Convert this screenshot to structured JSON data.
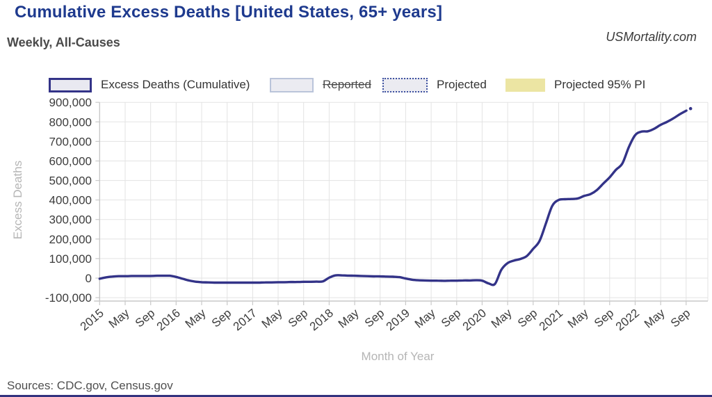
{
  "header": {
    "title": "Cumulative Excess Deaths [United States, 65+ years]",
    "subtitle": "Weekly, All-Causes",
    "watermark": "USMortality.com"
  },
  "legend": {
    "items": [
      {
        "label": "Excess Deaths (Cumulative)",
        "swatch_fill": "#e9e9f1",
        "swatch_border": "#333388",
        "border_style": "solid",
        "state": "active"
      },
      {
        "label": "Reported",
        "swatch_fill": "#ebebf1",
        "swatch_border": "#bac4da",
        "border_style": "solid",
        "state": "disabled"
      },
      {
        "label": "Projected",
        "swatch_fill": "#ebebf1",
        "swatch_border": "#3c50a0",
        "border_style": "dotted",
        "state": "active"
      },
      {
        "label": "Projected 95% PI",
        "swatch_fill": "#ece5a3",
        "swatch_border": "none",
        "border_style": "none",
        "state": "active"
      }
    ]
  },
  "chart_data": {
    "type": "line",
    "xlabel": "Month of Year",
    "ylabel": "Excess Deaths",
    "x_start": "2015-01",
    "x_step_months": 1,
    "ylim": [
      -100000,
      900000
    ],
    "xlim_months": [
      0,
      95.4
    ],
    "grid": true,
    "yticks": [
      -100000,
      0,
      100000,
      200000,
      300000,
      400000,
      500000,
      600000,
      700000,
      800000,
      900000
    ],
    "xticks": {
      "month_offsets": [
        0,
        4,
        8,
        12,
        16,
        20,
        24,
        28,
        32,
        36,
        40,
        44,
        48,
        52,
        56,
        60,
        64,
        68,
        72,
        76,
        80,
        84,
        88,
        92
      ],
      "labels": [
        "2015",
        "May",
        "Sep",
        "2016",
        "May",
        "Sep",
        "2017",
        "May",
        "Sep",
        "2018",
        "May",
        "Sep",
        "2019",
        "May",
        "Sep",
        "2020",
        "May",
        "Sep",
        "2021",
        "May",
        "Sep",
        "2022",
        "May",
        "Sep"
      ]
    },
    "series": [
      {
        "name": "Excess Deaths (Cumulative)",
        "color": "#333388",
        "values": [
          -3000,
          4000,
          8000,
          10000,
          10000,
          11000,
          11000,
          11000,
          11000,
          12000,
          12000,
          12000,
          6000,
          -3000,
          -12000,
          -18000,
          -21000,
          -22000,
          -23000,
          -23000,
          -23000,
          -23000,
          -23000,
          -23000,
          -23000,
          -23000,
          -22000,
          -22000,
          -21000,
          -21000,
          -20000,
          -20000,
          -19000,
          -19000,
          -18000,
          -17000,
          2000,
          14000,
          14000,
          13000,
          12000,
          11000,
          10000,
          9000,
          9000,
          8000,
          7000,
          5000,
          -2000,
          -8000,
          -11000,
          -12000,
          -13000,
          -13000,
          -14000,
          -13000,
          -13000,
          -12000,
          -12000,
          -11000,
          -13000,
          -27000,
          -30000,
          42000,
          77000,
          90000,
          98000,
          113000,
          150000,
          190000,
          280000,
          370000,
          400000,
          404000,
          405000,
          408000,
          421000,
          430000,
          451000,
          484000,
          516000,
          555000,
          587000,
          670000,
          732000,
          750000,
          752000,
          765000,
          785000,
          800000,
          818000,
          839000,
          857000
        ]
      }
    ],
    "projected_point": {
      "months_after_start": 92.7,
      "value": 868000
    }
  },
  "footer": {
    "sources": "Sources: CDC.gov, Census.gov"
  },
  "colors": {
    "title": "#1e3a8e",
    "line": "#333388",
    "projected_pi_fill": "#ece5a3",
    "reported_border": "#bac4da",
    "grid": "#e3e3e3",
    "axis": "#c9c9c9",
    "tick_text": "#3c3c3c",
    "axis_title_text": "#b5b5b5",
    "bottom_bar": "#32327e"
  }
}
